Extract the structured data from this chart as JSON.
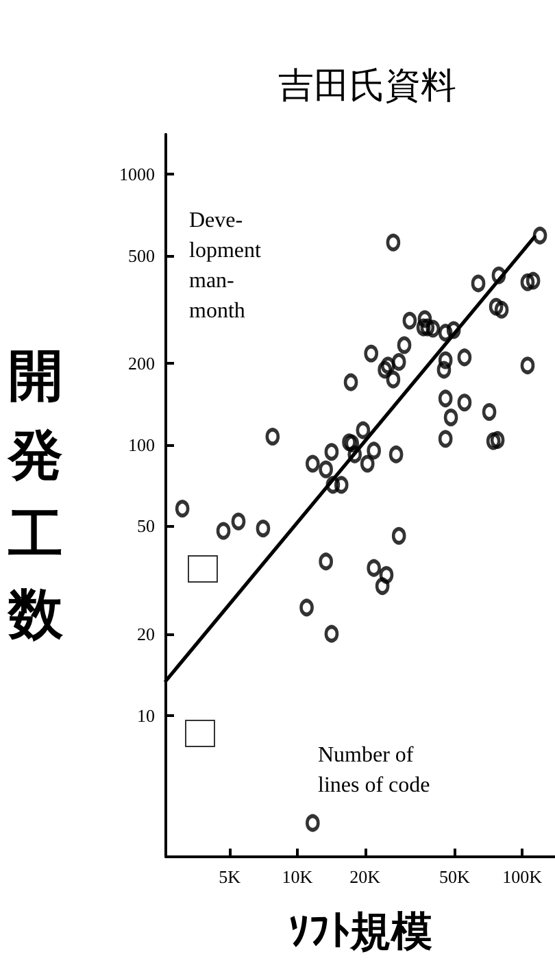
{
  "chart_data": {
    "type": "scatter",
    "title": "吉田氏資料",
    "xlabel": "ｿﾌﾄ規模",
    "ylabel": "開発工数",
    "annotations": [
      "Deve-\nlopment\nman-\nmonth",
      "Number of\nlines of code"
    ],
    "log": "xy",
    "marker": "circle",
    "xlim": [
      2600,
      140000
    ],
    "xticks": [
      {
        "value": 5000,
        "label": "5K"
      },
      {
        "value": 10000,
        "label": "10K"
      },
      {
        "value": 20000,
        "label": "20K"
      },
      {
        "value": 50000,
        "label": "50K"
      },
      {
        "value": 100000,
        "label": "100K"
      }
    ],
    "ylim": [
      3,
      1400
    ],
    "yticks": [
      10,
      20,
      50,
      100,
      200,
      500,
      1000
    ],
    "series": [
      {
        "color": "#000000",
        "x": [
          120000,
          26700,
          78700,
          63800,
          105700,
          111900,
          76600,
          81000,
          31600,
          36900,
          37900,
          40100,
          36400,
          45600,
          49600,
          29900,
          21300,
          28300,
          25300,
          24500,
          45600,
          44900,
          55400,
          105700,
          17300,
          26700,
          45600,
          55400,
          48200,
          71400,
          45600,
          74500,
          77700,
          7760,
          19600,
          17000,
          17500,
          21900,
          18000,
          14200,
          27500,
          11700,
          20500,
          13400,
          14400,
          15700,
          3080,
          4690,
          5470,
          7040,
          28300,
          13400,
          21900,
          24900,
          23900,
          11000,
          14200,
          11700
        ],
        "values": [
          592,
          558,
          422,
          394,
          398,
          403,
          323,
          315,
          287,
          291,
          271,
          268,
          271,
          259,
          265,
          233,
          217,
          202,
          196,
          189,
          205,
          189,
          210,
          196,
          170,
          174,
          148,
          143,
          126,
          132,
          105,
          103,
          104,
          107,
          113,
          102,
          101,
          95,
          92,
          94,
          92,
          85,
          85,
          81,
          71,
          71,
          58,
          48,
          52,
          49,
          46,
          37,
          35,
          33,
          30,
          25,
          20,
          4
        ]
      },
      {
        "type": "line",
        "color": "#000000",
        "marker": "none",
        "x": [
          2600,
          113500
        ],
        "values": [
          13.4,
          585
        ]
      }
    ]
  }
}
